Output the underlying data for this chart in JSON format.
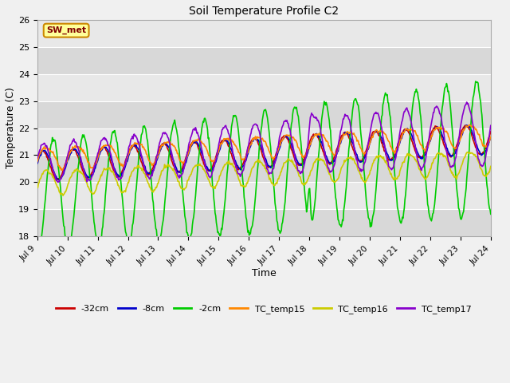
{
  "title": "Soil Temperature Profile C2",
  "xlabel": "Time",
  "ylabel": "Temperature (C)",
  "ylim": [
    18.0,
    26.0
  ],
  "yticks": [
    18.0,
    19.0,
    20.0,
    21.0,
    22.0,
    23.0,
    24.0,
    25.0,
    26.0
  ],
  "xtick_labels": [
    "Jul 9",
    "Jul 10",
    "Jul 11",
    "Jul 12",
    "Jul 13",
    "Jul 14",
    "Jul 15",
    "Jul 16",
    "Jul 17",
    "Jul 18",
    "Jul 19",
    "Jul 20",
    "Jul 21",
    "Jul 22",
    "Jul 23",
    "Jul 24"
  ],
  "axes_bg_light": "#e8e8e8",
  "axes_bg_dark": "#d8d8d8",
  "grid_color": "#ffffff",
  "fig_bg": "#f0f0f0",
  "series": [
    {
      "label": "-32cm",
      "color": "#cc0000",
      "lw": 1.2
    },
    {
      "label": "-8cm",
      "color": "#0000cc",
      "lw": 1.2
    },
    {
      "label": "-2cm",
      "color": "#00cc00",
      "lw": 1.2
    },
    {
      "label": "TC_temp15",
      "color": "#ff8800",
      "lw": 1.2
    },
    {
      "label": "TC_temp16",
      "color": "#cccc00",
      "lw": 1.2
    },
    {
      "label": "TC_temp17",
      "color": "#8800cc",
      "lw": 1.2
    }
  ],
  "watermark": "SW_met",
  "watermark_fg": "#800000",
  "watermark_bg": "#ffff99",
  "watermark_border": "#cc8800",
  "days": 15,
  "n_points": 720
}
